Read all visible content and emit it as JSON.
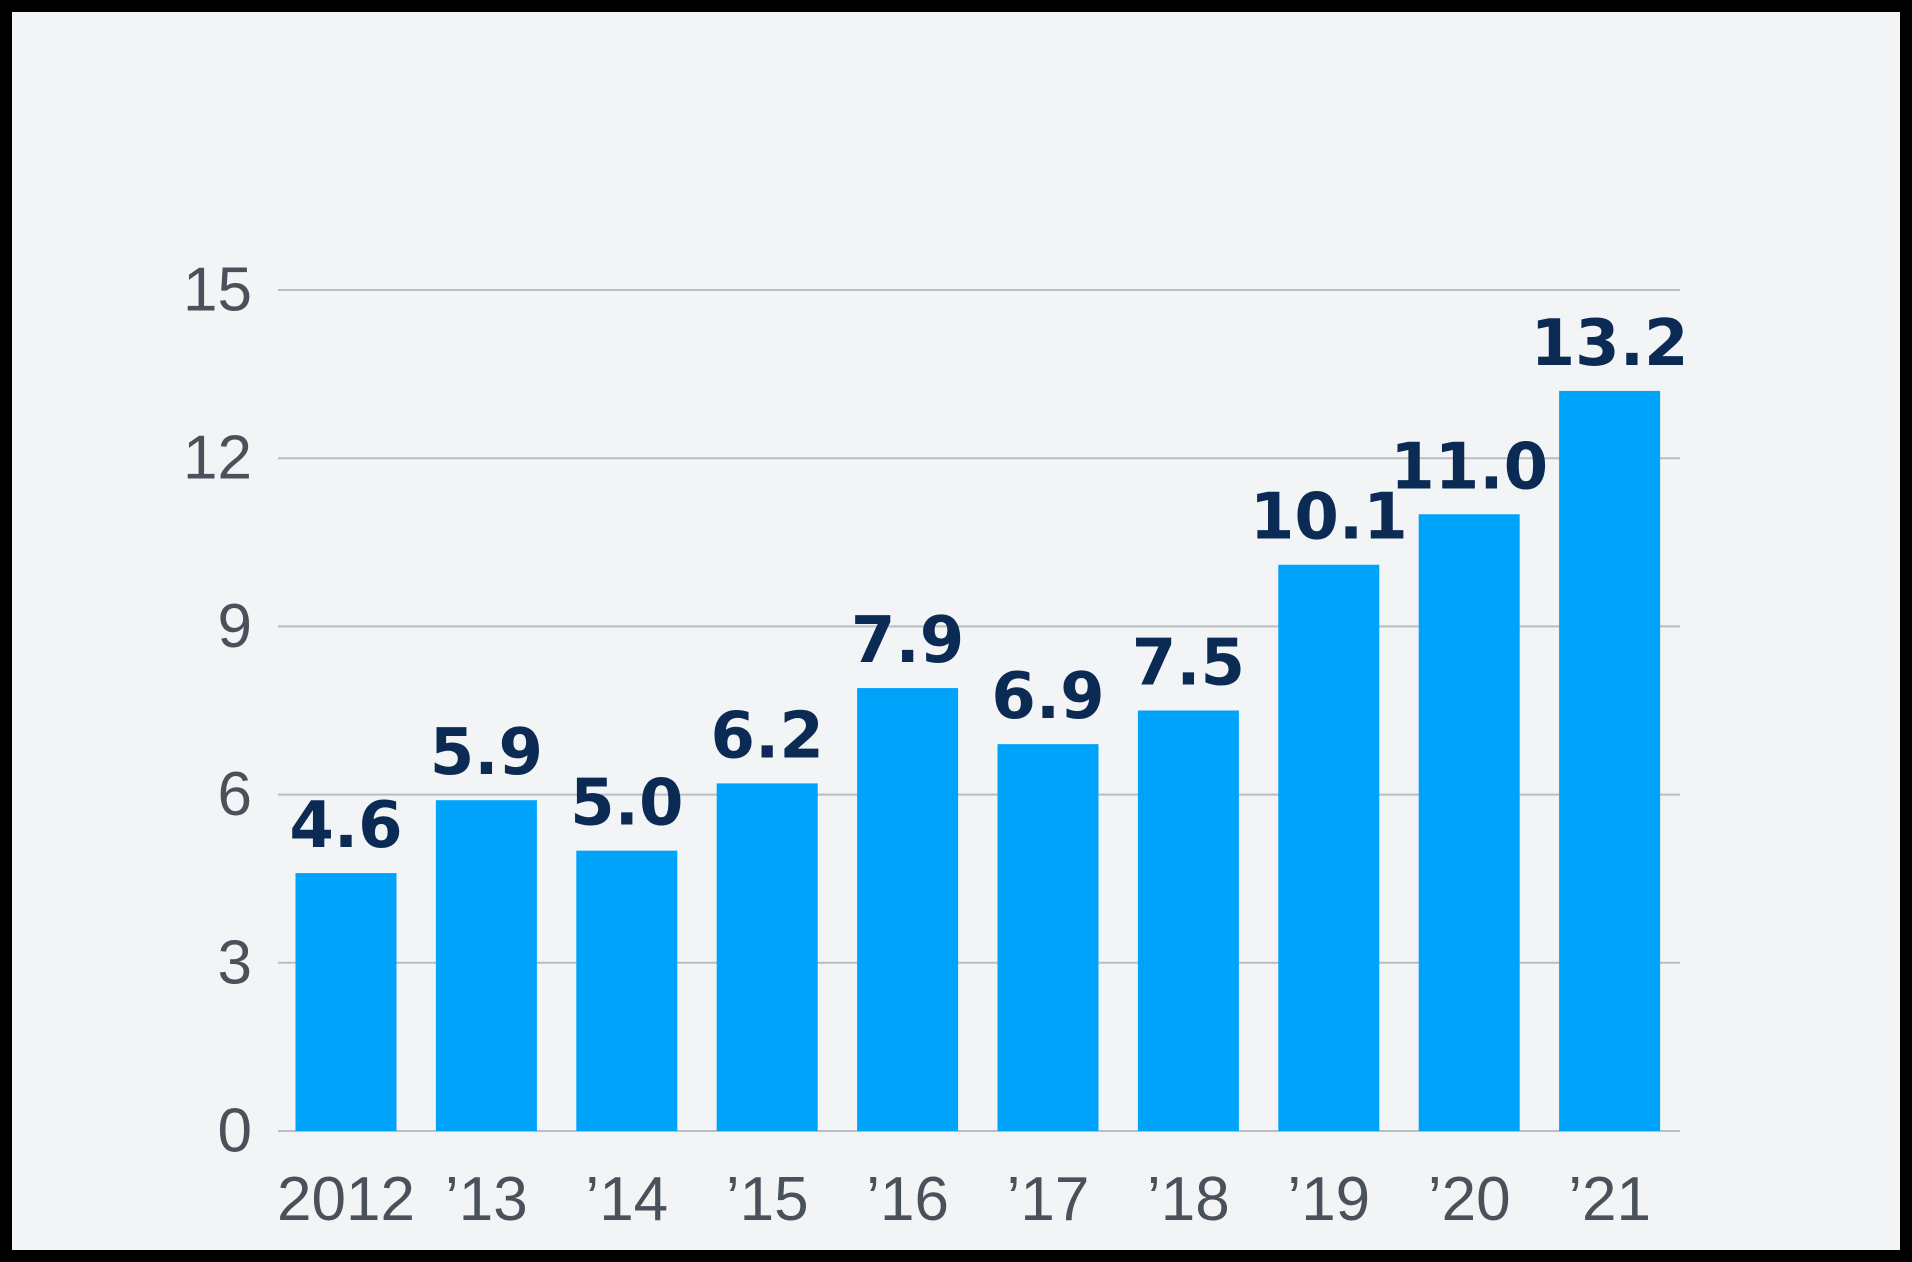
{
  "chart_data": {
    "type": "bar",
    "categories": [
      "2012",
      "’13",
      "’14",
      "’15",
      "’16",
      "’17",
      "’18",
      "’19",
      "’20",
      "’21"
    ],
    "values": [
      4.6,
      5.9,
      5.0,
      6.2,
      7.9,
      6.9,
      7.5,
      10.1,
      11.0,
      13.2
    ],
    "value_labels": [
      "4.6",
      "5.9",
      "5.0",
      "6.2",
      "7.9",
      "6.9",
      "7.5",
      "10.1",
      "11.0",
      "13.2"
    ],
    "title": "",
    "xlabel": "",
    "ylabel": "",
    "ylim": [
      0,
      15
    ],
    "yticks": [
      0,
      3,
      6,
      9,
      12,
      15
    ],
    "grid": true,
    "legend": "none"
  },
  "colors": {
    "background": "#f2f4f6",
    "border": "#000000",
    "bar": "#00a3fa",
    "value_label": "#0b2b55",
    "tick_label": "#4a515a",
    "grid": "#b9bec4"
  }
}
